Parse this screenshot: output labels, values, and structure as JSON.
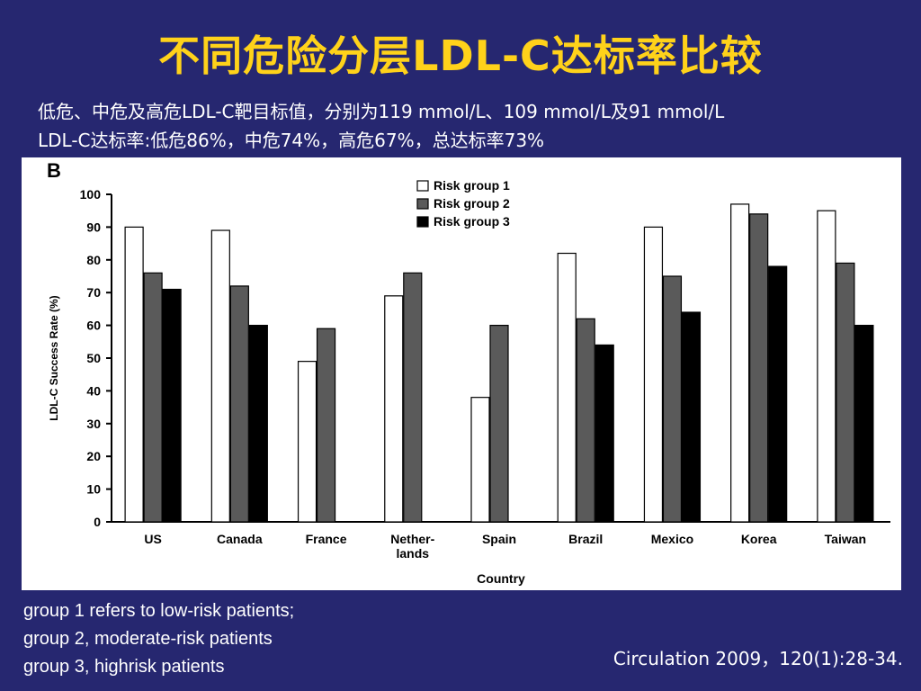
{
  "slide": {
    "title": "不同危险分层LDL-C达标率比较",
    "subtitle_lines": [
      "低危、中危及高危LDL-C靶目标值，分别为119 mmol/L、109 mmol/L及91 mmol/L",
      "LDL-C达标率:低危86%，中危74%，高危67%，总达标率73%"
    ],
    "notes": [
      "group 1 refers to low-risk patients;",
      "group 2, moderate-risk patients",
      "group 3, highrisk patients"
    ],
    "citation": "Circulation 2009，120(1):28-34.",
    "colors": {
      "background": "#262770",
      "title": "#FFD21A",
      "text": "#FFFFFF"
    }
  },
  "chart_data": {
    "type": "bar",
    "panel_label": "B",
    "xlabel": "Country",
    "ylabel": "LDL-C Success Rate (%)",
    "ylim": [
      0,
      100
    ],
    "yticks": [
      0,
      10,
      20,
      30,
      40,
      50,
      60,
      70,
      80,
      90,
      100
    ],
    "grid": false,
    "legend_position": "top-center",
    "categories": [
      "US",
      "Canada",
      "France",
      "Nether-\nlands",
      "Spain",
      "Brazil",
      "Mexico",
      "Korea",
      "Taiwan"
    ],
    "series": [
      {
        "name": "Risk group 1",
        "color": "#FFFFFF",
        "values": [
          90,
          89,
          49,
          69,
          38,
          82,
          90,
          97,
          95
        ]
      },
      {
        "name": "Risk group 2",
        "color": "#5A5A5A",
        "values": [
          76,
          72,
          59,
          76,
          60,
          62,
          75,
          94,
          79
        ]
      },
      {
        "name": "Risk group 3",
        "color": "#000000",
        "values": [
          71,
          60,
          null,
          null,
          null,
          54,
          64,
          78,
          60
        ]
      }
    ]
  }
}
